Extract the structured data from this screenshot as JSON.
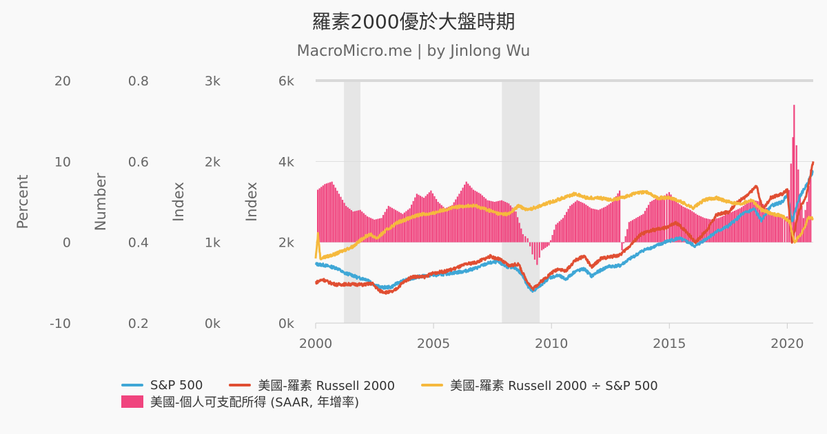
{
  "header": {
    "title": "羅素2000優於大盤時期",
    "subtitle": "MacroMicro.me | by Jinlong Wu"
  },
  "chart_data": {
    "type": "line",
    "title": "羅素2000優於大盤時期",
    "subtitle": "MacroMicro.me | by Jinlong Wu",
    "x_range": [
      2000,
      2021.1
    ],
    "x_ticks": [
      "2000",
      "2005",
      "2010",
      "2015",
      "2020"
    ],
    "x_tick_values": [
      2000,
      2005,
      2010,
      2015,
      2020
    ],
    "grid": true,
    "recession_shading": [
      [
        2001.2,
        2001.9
      ],
      [
        2007.9,
        2009.5
      ]
    ],
    "axes": [
      {
        "id": "percent",
        "label": "Percent",
        "range": [
          -10,
          20
        ],
        "ticks": [
          "-10",
          "0",
          "10",
          "20"
        ]
      },
      {
        "id": "number",
        "label": "Number",
        "range": [
          0.2,
          0.8
        ],
        "ticks": [
          "0.2",
          "0.4",
          "0.6",
          "0.8"
        ]
      },
      {
        "id": "index_a",
        "label": "Index",
        "range": [
          0,
          3000
        ],
        "ticks": [
          "0k",
          "1k",
          "2k",
          "3k"
        ]
      },
      {
        "id": "index_b",
        "label": "Index",
        "range": [
          0,
          6000
        ],
        "ticks": [
          "0k",
          "2k",
          "4k",
          "6k"
        ]
      }
    ],
    "series": [
      {
        "name": "S&P 500",
        "type": "line",
        "axis": "index_a",
        "color": "#3fa7d6",
        "points": [
          [
            2000.0,
            730
          ],
          [
            2000.3,
            720
          ],
          [
            2000.6,
            700
          ],
          [
            2000.9,
            680
          ],
          [
            2001.2,
            620
          ],
          [
            2001.5,
            600
          ],
          [
            2001.8,
            560
          ],
          [
            2002.2,
            540
          ],
          [
            2002.5,
            470
          ],
          [
            2002.8,
            440
          ],
          [
            2003.2,
            445
          ],
          [
            2003.5,
            500
          ],
          [
            2003.9,
            540
          ],
          [
            2004.3,
            570
          ],
          [
            2004.8,
            590
          ],
          [
            2005.3,
            600
          ],
          [
            2005.8,
            620
          ],
          [
            2006.3,
            640
          ],
          [
            2006.8,
            680
          ],
          [
            2007.3,
            740
          ],
          [
            2007.7,
            760
          ],
          [
            2008.1,
            700
          ],
          [
            2008.5,
            680
          ],
          [
            2008.8,
            580
          ],
          [
            2009.0,
            450
          ],
          [
            2009.2,
            390
          ],
          [
            2009.5,
            460
          ],
          [
            2009.9,
            560
          ],
          [
            2010.3,
            590
          ],
          [
            2010.6,
            540
          ],
          [
            2011.0,
            640
          ],
          [
            2011.4,
            670
          ],
          [
            2011.7,
            580
          ],
          [
            2012.0,
            640
          ],
          [
            2012.4,
            700
          ],
          [
            2012.9,
            710
          ],
          [
            2013.3,
            790
          ],
          [
            2013.9,
            900
          ],
          [
            2014.4,
            950
          ],
          [
            2014.9,
            1010
          ],
          [
            2015.4,
            1050
          ],
          [
            2015.8,
            1000
          ],
          [
            2016.1,
            950
          ],
          [
            2016.6,
            1050
          ],
          [
            2017.0,
            1130
          ],
          [
            2017.5,
            1200
          ],
          [
            2017.9,
            1300
          ],
          [
            2018.1,
            1350
          ],
          [
            2018.6,
            1410
          ],
          [
            2018.9,
            1270
          ],
          [
            2019.3,
            1450
          ],
          [
            2019.8,
            1500
          ],
          [
            2020.0,
            1600
          ],
          [
            2020.2,
            1250
          ],
          [
            2020.5,
            1550
          ],
          [
            2020.8,
            1700
          ],
          [
            2021.1,
            1880
          ]
        ]
      },
      {
        "name": "美國-羅素 Russell 2000",
        "type": "line",
        "axis": "index_b",
        "color": "#e04e32",
        "points": [
          [
            2000.0,
            1000
          ],
          [
            2000.3,
            1080
          ],
          [
            2000.6,
            1000
          ],
          [
            2000.9,
            950
          ],
          [
            2001.2,
            960
          ],
          [
            2001.6,
            960
          ],
          [
            2002.0,
            950
          ],
          [
            2002.4,
            980
          ],
          [
            2002.7,
            800
          ],
          [
            2003.0,
            760
          ],
          [
            2003.3,
            780
          ],
          [
            2003.7,
            1000
          ],
          [
            2004.1,
            1150
          ],
          [
            2004.6,
            1140
          ],
          [
            2005.0,
            1240
          ],
          [
            2005.5,
            1280
          ],
          [
            2005.9,
            1350
          ],
          [
            2006.4,
            1460
          ],
          [
            2006.8,
            1500
          ],
          [
            2007.4,
            1650
          ],
          [
            2007.8,
            1580
          ],
          [
            2008.2,
            1420
          ],
          [
            2008.6,
            1460
          ],
          [
            2008.9,
            1100
          ],
          [
            2009.2,
            840
          ],
          [
            2009.5,
            1000
          ],
          [
            2010.0,
            1240
          ],
          [
            2010.3,
            1350
          ],
          [
            2010.6,
            1280
          ],
          [
            2011.0,
            1550
          ],
          [
            2011.4,
            1660
          ],
          [
            2011.7,
            1380
          ],
          [
            2012.1,
            1600
          ],
          [
            2012.5,
            1640
          ],
          [
            2012.9,
            1680
          ],
          [
            2013.3,
            1900
          ],
          [
            2013.8,
            2200
          ],
          [
            2014.3,
            2300
          ],
          [
            2014.8,
            2350
          ],
          [
            2015.3,
            2480
          ],
          [
            2015.7,
            2280
          ],
          [
            2016.1,
            2000
          ],
          [
            2016.6,
            2300
          ],
          [
            2017.0,
            2680
          ],
          [
            2017.5,
            2750
          ],
          [
            2017.9,
            3000
          ],
          [
            2018.3,
            3150
          ],
          [
            2018.7,
            3400
          ],
          [
            2018.95,
            2800
          ],
          [
            2019.3,
            3100
          ],
          [
            2019.8,
            3200
          ],
          [
            2020.0,
            3300
          ],
          [
            2020.2,
            2000
          ],
          [
            2020.5,
            2800
          ],
          [
            2020.8,
            3150
          ],
          [
            2021.1,
            4000
          ]
        ]
      },
      {
        "name": "美國-羅素 Russell 2000 ÷ S&P 500",
        "type": "line",
        "axis": "number",
        "color": "#f5b93d",
        "points": [
          [
            2000.0,
            0.36
          ],
          [
            2000.1,
            0.42
          ],
          [
            2000.2,
            0.36
          ],
          [
            2000.5,
            0.365
          ],
          [
            2000.8,
            0.37
          ],
          [
            2001.2,
            0.38
          ],
          [
            2001.6,
            0.39
          ],
          [
            2002.0,
            0.41
          ],
          [
            2002.3,
            0.42
          ],
          [
            2002.6,
            0.41
          ],
          [
            2003.0,
            0.43
          ],
          [
            2003.5,
            0.45
          ],
          [
            2004.0,
            0.46
          ],
          [
            2004.5,
            0.47
          ],
          [
            2004.9,
            0.47
          ],
          [
            2005.4,
            0.48
          ],
          [
            2005.8,
            0.485
          ],
          [
            2006.3,
            0.49
          ],
          [
            2006.8,
            0.49
          ],
          [
            2007.3,
            0.48
          ],
          [
            2007.8,
            0.47
          ],
          [
            2008.2,
            0.47
          ],
          [
            2008.6,
            0.49
          ],
          [
            2009.0,
            0.48
          ],
          [
            2009.5,
            0.49
          ],
          [
            2010.0,
            0.5
          ],
          [
            2010.5,
            0.51
          ],
          [
            2011.0,
            0.52
          ],
          [
            2011.5,
            0.51
          ],
          [
            2012.0,
            0.51
          ],
          [
            2012.5,
            0.505
          ],
          [
            2013.0,
            0.51
          ],
          [
            2013.5,
            0.52
          ],
          [
            2014.0,
            0.525
          ],
          [
            2014.5,
            0.51
          ],
          [
            2015.0,
            0.51
          ],
          [
            2015.5,
            0.5
          ],
          [
            2016.0,
            0.485
          ],
          [
            2016.5,
            0.505
          ],
          [
            2017.0,
            0.51
          ],
          [
            2017.5,
            0.5
          ],
          [
            2018.0,
            0.495
          ],
          [
            2018.5,
            0.505
          ],
          [
            2018.9,
            0.48
          ],
          [
            2019.4,
            0.47
          ],
          [
            2019.8,
            0.465
          ],
          [
            2020.1,
            0.45
          ],
          [
            2020.3,
            0.4
          ],
          [
            2020.6,
            0.42
          ],
          [
            2020.9,
            0.46
          ],
          [
            2021.1,
            0.46
          ]
        ]
      },
      {
        "name": "美國-個人可支配所得 (SAAR, 年增率)",
        "type": "bar",
        "axis": "percent",
        "color": "#f0447e",
        "points": [
          [
            2000.1,
            6.5
          ],
          [
            2000.4,
            7.2
          ],
          [
            2000.7,
            7.5
          ],
          [
            2001.0,
            6.0
          ],
          [
            2001.3,
            4.5
          ],
          [
            2001.6,
            3.8
          ],
          [
            2001.9,
            4.0
          ],
          [
            2002.2,
            3.2
          ],
          [
            2002.5,
            2.8
          ],
          [
            2002.8,
            3.0
          ],
          [
            2003.1,
            4.5
          ],
          [
            2003.4,
            4.0
          ],
          [
            2003.7,
            3.5
          ],
          [
            2004.0,
            4.2
          ],
          [
            2004.3,
            6.0
          ],
          [
            2004.6,
            5.5
          ],
          [
            2004.9,
            6.4
          ],
          [
            2005.2,
            5.0
          ],
          [
            2005.5,
            4.2
          ],
          [
            2005.8,
            4.6
          ],
          [
            2006.1,
            6.0
          ],
          [
            2006.4,
            7.5
          ],
          [
            2006.7,
            6.5
          ],
          [
            2007.0,
            6.0
          ],
          [
            2007.3,
            5.2
          ],
          [
            2007.6,
            5.0
          ],
          [
            2007.9,
            5.2
          ],
          [
            2008.2,
            4.8
          ],
          [
            2008.5,
            3.8
          ],
          [
            2008.8,
            1.0
          ],
          [
            2009.0,
            0.5
          ],
          [
            2009.2,
            -1.5
          ],
          [
            2009.4,
            -2.8
          ],
          [
            2009.6,
            -1.0
          ],
          [
            2009.9,
            -0.4
          ],
          [
            2010.2,
            2.2
          ],
          [
            2010.5,
            3.0
          ],
          [
            2010.8,
            4.5
          ],
          [
            2011.1,
            5.2
          ],
          [
            2011.4,
            4.8
          ],
          [
            2011.7,
            4.2
          ],
          [
            2012.0,
            4.0
          ],
          [
            2012.3,
            4.4
          ],
          [
            2012.6,
            5.0
          ],
          [
            2012.9,
            6.4
          ],
          [
            2013.0,
            -1.0
          ],
          [
            2013.3,
            2.5
          ],
          [
            2013.6,
            3.0
          ],
          [
            2013.9,
            3.5
          ],
          [
            2014.2,
            5.0
          ],
          [
            2014.5,
            5.5
          ],
          [
            2014.8,
            5.8
          ],
          [
            2015.0,
            6.2
          ],
          [
            2015.3,
            5.0
          ],
          [
            2015.6,
            4.4
          ],
          [
            2015.9,
            4.0
          ],
          [
            2016.2,
            3.4
          ],
          [
            2016.5,
            3.0
          ],
          [
            2016.8,
            2.8
          ],
          [
            2017.1,
            3.0
          ],
          [
            2017.4,
            3.4
          ],
          [
            2017.7,
            3.8
          ],
          [
            2018.0,
            4.2
          ],
          [
            2018.3,
            4.8
          ],
          [
            2018.6,
            5.2
          ],
          [
            2018.9,
            5.0
          ],
          [
            2019.2,
            4.0
          ],
          [
            2019.5,
            3.4
          ],
          [
            2019.8,
            3.0
          ],
          [
            2020.0,
            3.2
          ],
          [
            2020.25,
            13.0
          ],
          [
            2020.3,
            17.0
          ],
          [
            2020.4,
            12.0
          ],
          [
            2020.55,
            6.0
          ],
          [
            2020.7,
            3.0
          ],
          [
            2020.85,
            5.0
          ],
          [
            2021.0,
            9.0
          ]
        ]
      }
    ]
  },
  "legend": {
    "items": [
      {
        "label": "S&P 500",
        "color": "#3fa7d6"
      },
      {
        "label": "美國-羅素 Russell 2000",
        "color": "#e04e32"
      },
      {
        "label": "美國-羅素 Russell 2000 ÷ S&P 500",
        "color": "#f5b93d"
      },
      {
        "label": "美國-個人可支配所得 (SAAR, 年增率)",
        "color": "#f0447e"
      }
    ]
  }
}
